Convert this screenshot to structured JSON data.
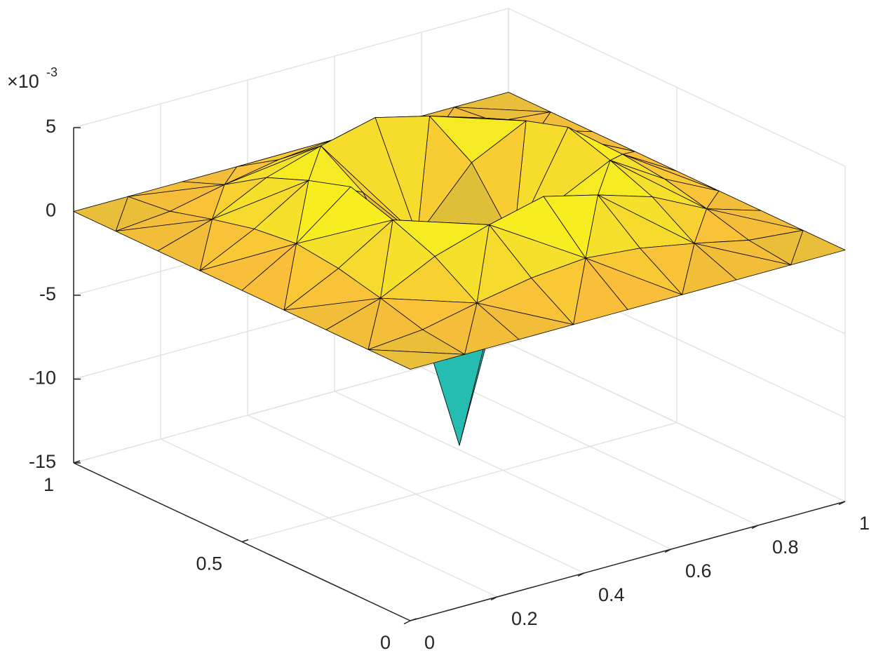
{
  "chart_data": {
    "type": "surface",
    "x": [
      0,
      0.125,
      0.25,
      0.375,
      0.5,
      0.625,
      0.75,
      0.875,
      1
    ],
    "y": [
      0,
      0.125,
      0.25,
      0.375,
      0.5,
      0.625,
      0.75,
      0.875,
      1
    ],
    "z": [
      [
        0,
        0,
        0,
        0,
        0,
        0,
        0,
        0,
        0
      ],
      [
        0,
        0.3,
        1.0,
        1.6,
        1.9,
        1.6,
        1.0,
        0.3,
        0
      ],
      [
        0,
        1.0,
        2.6,
        3.6,
        4.4,
        3.6,
        2.6,
        1.0,
        0
      ],
      [
        0,
        1.6,
        3.6,
        2.0,
        -1.5,
        2.0,
        3.6,
        1.6,
        0
      ],
      [
        0,
        1.9,
        4.4,
        -1.5,
        -12.8,
        -1.5,
        4.4,
        1.9,
        0
      ],
      [
        0,
        1.6,
        3.6,
        2.0,
        -1.5,
        2.0,
        3.6,
        1.6,
        0
      ],
      [
        0,
        1.0,
        2.6,
        3.6,
        4.4,
        3.6,
        2.6,
        1.0,
        0
      ],
      [
        0,
        0.3,
        1.0,
        1.6,
        1.9,
        1.6,
        1.0,
        0.3,
        0
      ],
      [
        0,
        0,
        0,
        0,
        0,
        0,
        0,
        0,
        0
      ]
    ],
    "xlim": [
      0,
      1
    ],
    "xticks": [
      0,
      0.2,
      0.4,
      0.6,
      0.8,
      1
    ],
    "ylim": [
      0,
      1
    ],
    "yticks": [
      0,
      0.5,
      1
    ],
    "zlim": [
      -15,
      5
    ],
    "zticks": [
      -15,
      -10,
      -5,
      0,
      5
    ],
    "z_multiplier": "×10",
    "z_multiplier_exponent": "-3",
    "grid": true,
    "colormap": [
      "#3e26a8",
      "#4748f4",
      "#2f7ff0",
      "#1ba6d9",
      "#26bdb0",
      "#7ac66a",
      "#c3bd3a",
      "#f9be3a",
      "#f5e22a",
      "#f9fb15"
    ]
  }
}
